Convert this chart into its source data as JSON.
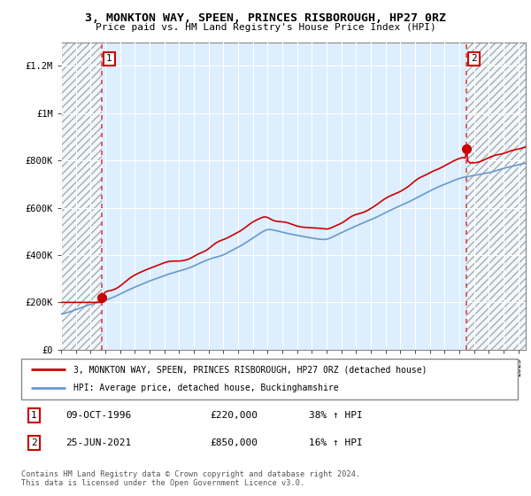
{
  "title1": "3, MONKTON WAY, SPEEN, PRINCES RISBOROUGH, HP27 0RZ",
  "title2": "Price paid vs. HM Land Registry's House Price Index (HPI)",
  "ylim": [
    0,
    1300000
  ],
  "yticks": [
    0,
    200000,
    400000,
    600000,
    800000,
    1000000,
    1200000
  ],
  "ytick_labels": [
    "£0",
    "£200K",
    "£400K",
    "£600K",
    "£800K",
    "£1M",
    "£1.2M"
  ],
  "point1_x": 1996.77,
  "point1_y": 220000,
  "point2_x": 2021.48,
  "point2_y": 850000,
  "line1_color": "#cc0000",
  "line2_color": "#6699cc",
  "dot_color": "#cc0000",
  "dashed_color": "#dd4444",
  "plot_bg_color": "#ddeeff",
  "hatch_bg_color": "#c8c8c8",
  "legend1": "3, MONKTON WAY, SPEEN, PRINCES RISBOROUGH, HP27 0RZ (detached house)",
  "legend2": "HPI: Average price, detached house, Buckinghamshire",
  "table_row1": [
    "1",
    "09-OCT-1996",
    "£220,000",
    "38% ↑ HPI"
  ],
  "table_row2": [
    "2",
    "25-JUN-2021",
    "£850,000",
    "16% ↑ HPI"
  ],
  "footer": "Contains HM Land Registry data © Crown copyright and database right 2024.\nThis data is licensed under the Open Government Licence v3.0.",
  "xmin": 1994.0,
  "xmax": 2025.5
}
